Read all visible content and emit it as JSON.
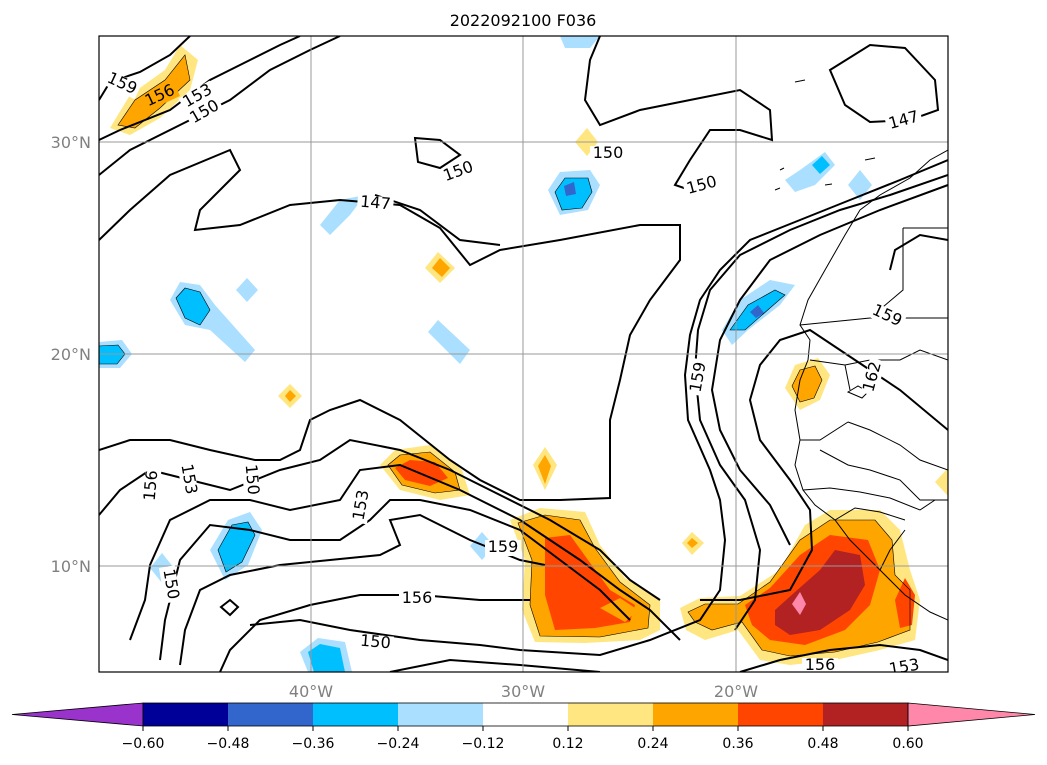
{
  "title": "2022092100 F036",
  "lat_labels": [
    "30°N",
    "20°N",
    "10°N"
  ],
  "lon_labels": [
    "40°W",
    "30°W",
    "20°W"
  ],
  "contour_labels": [
    "159",
    "156",
    "153",
    "150",
    "147",
    "150",
    "150",
    "147",
    "150",
    "159",
    "162",
    "159",
    "156",
    "153",
    "150",
    "153",
    "159",
    "156",
    "150",
    "150",
    "156",
    "153"
  ],
  "colorbar": {
    "ticks": [
      "−0.60",
      "−0.48",
      "−0.36",
      "−0.24",
      "−0.12",
      "0.12",
      "0.24",
      "0.36",
      "0.48",
      "0.60"
    ],
    "colors": [
      "#9933cc",
      "#000099",
      "#3366cc",
      "#00bfff",
      "#aadfff",
      "#ffffff",
      "#ffe680",
      "#ffa500",
      "#ff4500",
      "#b22222",
      "#ff88aa"
    ]
  },
  "colors": {
    "light_blue": "#aadfff",
    "blue": "#00bfff",
    "mid_blue": "#3366cc",
    "yellow": "#ffe680",
    "orange": "#ffa500",
    "red_orange": "#ff4500",
    "dark_red": "#b22222",
    "pink": "#ff88aa"
  }
}
